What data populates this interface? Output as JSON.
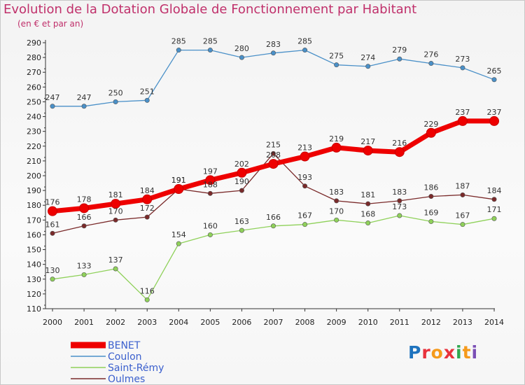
{
  "title": "Evolution de la Dotation Globale de Fonctionnement par Habitant",
  "subtitle": "(en € et par an)",
  "logo": {
    "text": "Proxiti",
    "colors": [
      "#1e73be",
      "#e8323c",
      "#f59a1b",
      "#e8323c",
      "#2fa84f",
      "#f59a1b",
      "#7b4fb5"
    ]
  },
  "chart_data": {
    "type": "line",
    "x": [
      2000,
      2001,
      2002,
      2003,
      2004,
      2005,
      2006,
      2007,
      2008,
      2009,
      2010,
      2011,
      2012,
      2013,
      2014
    ],
    "ylim": [
      110,
      290
    ],
    "yticks": [
      110,
      120,
      130,
      140,
      150,
      160,
      170,
      180,
      190,
      200,
      210,
      220,
      230,
      240,
      250,
      260,
      270,
      280,
      290
    ],
    "grid": false,
    "legend": "bottom-left",
    "series": [
      {
        "name": "BENET",
        "color": "#ee0000",
        "values": [
          176,
          178,
          181,
          184,
          191,
          197,
          202,
          208,
          213,
          219,
          217,
          216,
          229,
          237,
          237
        ]
      },
      {
        "name": "Coulon",
        "color": "#4a90c8",
        "values": [
          247,
          247,
          250,
          251,
          285,
          285,
          280,
          283,
          285,
          275,
          274,
          279,
          276,
          273,
          265
        ]
      },
      {
        "name": "Saint-Rémy",
        "color": "#8fd15a",
        "values": [
          130,
          133,
          137,
          116,
          154,
          160,
          163,
          166,
          167,
          170,
          168,
          173,
          169,
          167,
          171
        ]
      },
      {
        "name": "Oulmes",
        "color": "#7a2a2a",
        "values": [
          161,
          166,
          170,
          172,
          191,
          188,
          190,
          215,
          193,
          183,
          181,
          183,
          186,
          187,
          184
        ]
      }
    ]
  }
}
